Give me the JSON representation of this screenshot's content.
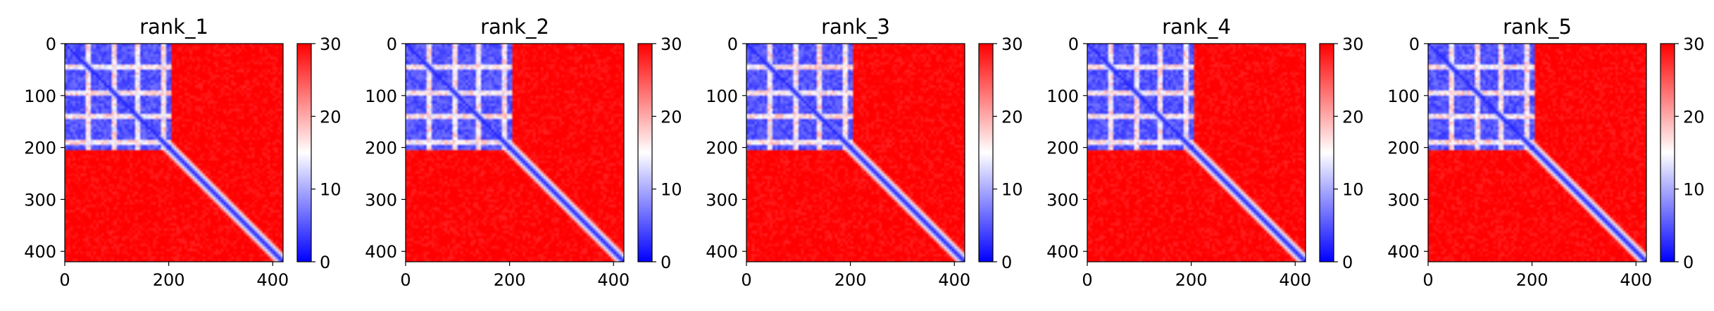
{
  "chart_data": [
    {
      "type": "heatmap",
      "title": "rank_1",
      "xlabel": "",
      "ylabel": "",
      "xlim": [
        0,
        420
      ],
      "ylim": [
        420,
        0
      ],
      "x_ticks": [
        "0",
        "200",
        "400"
      ],
      "y_ticks": [
        "0",
        "100",
        "200",
        "300",
        "400"
      ],
      "colorbar": {
        "range": [
          0,
          30
        ],
        "ticks": [
          "0",
          "10",
          "20",
          "30"
        ],
        "colormap": "bwr"
      },
      "structure": {
        "low_block": [
          0,
          205
        ],
        "stripes": [
          45,
          95,
          140,
          190
        ],
        "diagonal": "low"
      }
    },
    {
      "type": "heatmap",
      "title": "rank_2",
      "xlabel": "",
      "ylabel": "",
      "xlim": [
        0,
        420
      ],
      "ylim": [
        420,
        0
      ],
      "x_ticks": [
        "0",
        "200",
        "400"
      ],
      "y_ticks": [
        "0",
        "100",
        "200",
        "300",
        "400"
      ],
      "colorbar": {
        "range": [
          0,
          30
        ],
        "ticks": [
          "0",
          "10",
          "20",
          "30"
        ],
        "colormap": "bwr"
      },
      "structure": {
        "low_block": [
          0,
          205
        ],
        "stripes": [
          45,
          95,
          140,
          190
        ],
        "diagonal": "low"
      }
    },
    {
      "type": "heatmap",
      "title": "rank_3",
      "xlabel": "",
      "ylabel": "",
      "xlim": [
        0,
        420
      ],
      "ylim": [
        420,
        0
      ],
      "x_ticks": [
        "0",
        "200",
        "400"
      ],
      "y_ticks": [
        "0",
        "100",
        "200",
        "300",
        "400"
      ],
      "colorbar": {
        "range": [
          0,
          30
        ],
        "ticks": [
          "0",
          "10",
          "20",
          "30"
        ],
        "colormap": "bwr"
      },
      "structure": {
        "low_block": [
          0,
          205
        ],
        "stripes": [
          45,
          95,
          140,
          190
        ],
        "diagonal": "low"
      }
    },
    {
      "type": "heatmap",
      "title": "rank_4",
      "xlabel": "",
      "ylabel": "",
      "xlim": [
        0,
        420
      ],
      "ylim": [
        420,
        0
      ],
      "x_ticks": [
        "0",
        "200",
        "400"
      ],
      "y_ticks": [
        "0",
        "100",
        "200",
        "300",
        "400"
      ],
      "colorbar": {
        "range": [
          0,
          30
        ],
        "ticks": [
          "0",
          "10",
          "20",
          "30"
        ],
        "colormap": "bwr"
      },
      "structure": {
        "low_block": [
          0,
          205
        ],
        "stripes": [
          45,
          95,
          140,
          190
        ],
        "diagonal": "low"
      }
    },
    {
      "type": "heatmap",
      "title": "rank_5",
      "xlabel": "",
      "ylabel": "",
      "xlim": [
        0,
        420
      ],
      "ylim": [
        420,
        0
      ],
      "x_ticks": [
        "0",
        "200",
        "400"
      ],
      "y_ticks": [
        "0",
        "100",
        "200",
        "300",
        "400"
      ],
      "colorbar": {
        "range": [
          0,
          30
        ],
        "ticks": [
          "0",
          "10",
          "20",
          "30"
        ],
        "colormap": "bwr"
      },
      "structure": {
        "low_block": [
          0,
          205
        ],
        "stripes": [
          45,
          95,
          140,
          190
        ],
        "diagonal": "low"
      }
    }
  ],
  "colors": {
    "low": "#0000ff",
    "mid": "#ffffff",
    "high": "#ff0000",
    "axis": "#000000"
  }
}
